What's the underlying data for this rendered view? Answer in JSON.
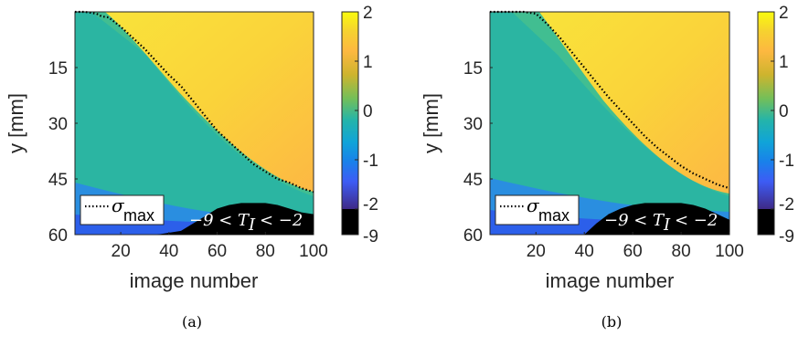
{
  "chart_data": [
    {
      "type": "heatmap",
      "panel": "(a)",
      "xlabel": "image number",
      "ylabel": "y [mm]",
      "xlim": [
        1,
        100
      ],
      "ylim": [
        0,
        60
      ],
      "y_reversed": true,
      "xticks": [
        20,
        40,
        60,
        80,
        100
      ],
      "yticks": [
        15,
        30,
        45,
        60
      ],
      "color_scale": {
        "min": -9,
        "max": 2,
        "ticks": [
          "2",
          "1",
          "0",
          "-1",
          "-2",
          "-9"
        ],
        "colormap": "parula",
        "black_band": "-9 to -2"
      },
      "legend": {
        "label": "σ",
        "sub": "max",
        "style": "dotted"
      },
      "annotation": "−9 < T_I < −2",
      "annotation_parts": {
        "left": "−9 <",
        "var": "T",
        "sub": "I",
        "right": "< −2"
      },
      "sigma_max_line": {
        "x": [
          1,
          5,
          10,
          12,
          15,
          20,
          25,
          30,
          35,
          40,
          45,
          50,
          55,
          60,
          65,
          70,
          75,
          80,
          85,
          90,
          95,
          100
        ],
        "y": [
          0,
          0,
          0.5,
          1.2,
          1.5,
          4,
          7,
          10,
          13.5,
          17,
          20,
          24,
          28,
          32,
          35,
          38,
          41,
          43,
          45,
          46,
          47.5,
          48.5
        ]
      },
      "black_region_top": {
        "x": [
          35,
          45,
          55,
          60,
          65,
          70,
          75,
          80,
          85,
          90,
          95,
          100
        ],
        "y": [
          60,
          59,
          55,
          53,
          52,
          51.5,
          51.5,
          51.5,
          52,
          53,
          54,
          54.5
        ]
      }
    },
    {
      "type": "heatmap",
      "panel": "(b)",
      "xlabel": "image number",
      "ylabel": "y [mm]",
      "xlim": [
        1,
        100
      ],
      "ylim": [
        0,
        60
      ],
      "y_reversed": true,
      "xticks": [
        20,
        40,
        60,
        80,
        100
      ],
      "yticks": [
        15,
        30,
        45,
        60
      ],
      "color_scale": {
        "min": -9,
        "max": 2,
        "ticks": [
          "2",
          "1",
          "0",
          "-1",
          "-2",
          "-9"
        ],
        "colormap": "parula",
        "black_band": "-9 to -2"
      },
      "legend": {
        "label": "σ",
        "sub": "max",
        "style": "dotted"
      },
      "annotation": "−9 < T_I < −2",
      "annotation_parts": {
        "left": "−9 <",
        "var": "T",
        "sub": "I",
        "right": "< −2"
      },
      "sigma_max_line": {
        "x": [
          1,
          5,
          10,
          15,
          20,
          25,
          30,
          35,
          40,
          45,
          50,
          55,
          60,
          65,
          70,
          75,
          80,
          85,
          90,
          95,
          100
        ],
        "y": [
          0,
          0,
          0,
          0,
          0.5,
          3.5,
          7,
          11,
          15,
          19,
          23,
          26.5,
          30,
          33.5,
          36.5,
          39,
          41.5,
          43.5,
          45,
          46.5,
          47.5
        ]
      },
      "black_region_top": {
        "x": [
          40,
          45,
          50,
          55,
          60,
          65,
          70,
          75,
          80,
          85,
          90,
          95,
          100
        ],
        "y": [
          60,
          57,
          54.5,
          53,
          52,
          51.5,
          51.5,
          51.5,
          51.5,
          52,
          53,
          54.5,
          56
        ]
      }
    }
  ]
}
